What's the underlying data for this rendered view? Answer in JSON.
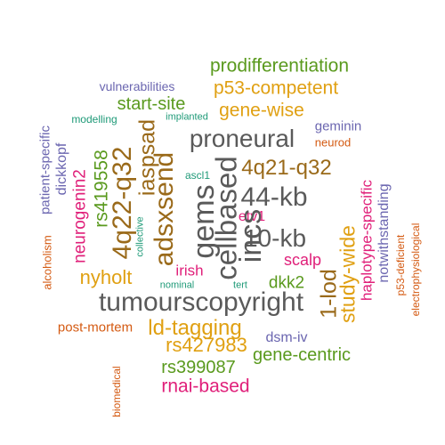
{
  "colors": {
    "green": "#5a9a1e",
    "gold": "#e0a012",
    "brown": "#9a6a1a",
    "gray": "#5a5a5a",
    "purple": "#6b66b0",
    "magenta": "#e0207a",
    "orange": "#d45a12",
    "teal": "#1f9a78"
  },
  "words": [
    {
      "text": "prodifferentiation",
      "color": "green"
    },
    {
      "text": "vulnerabilities",
      "color": "purple"
    },
    {
      "text": "p53-competent",
      "color": "gold"
    },
    {
      "text": "start-site",
      "color": "green"
    },
    {
      "text": "gene-wise",
      "color": "gold"
    },
    {
      "text": "modelling",
      "color": "teal"
    },
    {
      "text": "implanted",
      "color": "teal"
    },
    {
      "text": "proneural",
      "color": "gray"
    },
    {
      "text": "geminin",
      "color": "purple"
    },
    {
      "text": "neurod",
      "color": "orange"
    },
    {
      "text": "4q21-q32",
      "color": "brown"
    },
    {
      "text": "ascl1",
      "color": "teal"
    },
    {
      "text": "44-kb",
      "color": "gray"
    },
    {
      "text": "etv1",
      "color": "magenta"
    },
    {
      "text": "10-kb",
      "color": "gray"
    },
    {
      "text": "scalp",
      "color": "magenta"
    },
    {
      "text": "irish",
      "color": "magenta"
    },
    {
      "text": "nyholt",
      "color": "gold"
    },
    {
      "text": "dkk2",
      "color": "green"
    },
    {
      "text": "nominal",
      "color": "teal"
    },
    {
      "text": "tert",
      "color": "teal"
    },
    {
      "text": "tumourscopyright",
      "color": "gray"
    },
    {
      "text": "ld-tagging",
      "color": "gold"
    },
    {
      "text": "post-mortem",
      "color": "orange"
    },
    {
      "text": "rs427983",
      "color": "gold"
    },
    {
      "text": "dsm-iv",
      "color": "purple"
    },
    {
      "text": "gene-centric",
      "color": "green"
    },
    {
      "text": "rs399087",
      "color": "green"
    },
    {
      "text": "rnai-based",
      "color": "magenta"
    },
    {
      "text": "patient-specific",
      "color": "purple"
    },
    {
      "text": "alcoholism",
      "color": "orange"
    },
    {
      "text": "dickkopf",
      "color": "purple"
    },
    {
      "text": "neurogenin2",
      "color": "magenta"
    },
    {
      "text": "rs419558",
      "color": "green"
    },
    {
      "text": "4q22-q32",
      "color": "brown"
    },
    {
      "text": "collective",
      "color": "teal"
    },
    {
      "text": "iaspsad",
      "color": "brown"
    },
    {
      "text": "adsxsend",
      "color": "brown"
    },
    {
      "text": "gems",
      "color": "gray"
    },
    {
      "text": "cellbased",
      "color": "gray"
    },
    {
      "text": "incs",
      "color": "gray"
    },
    {
      "text": "1-lod",
      "color": "brown"
    },
    {
      "text": "study-wide",
      "color": "gold"
    },
    {
      "text": "haplotype-specific",
      "color": "magenta"
    },
    {
      "text": "notwithstanding",
      "color": "purple"
    },
    {
      "text": "p53-deficient",
      "color": "orange"
    },
    {
      "text": "electrophysiological",
      "color": "orange"
    },
    {
      "text": "biomedical",
      "color": "orange"
    }
  ]
}
